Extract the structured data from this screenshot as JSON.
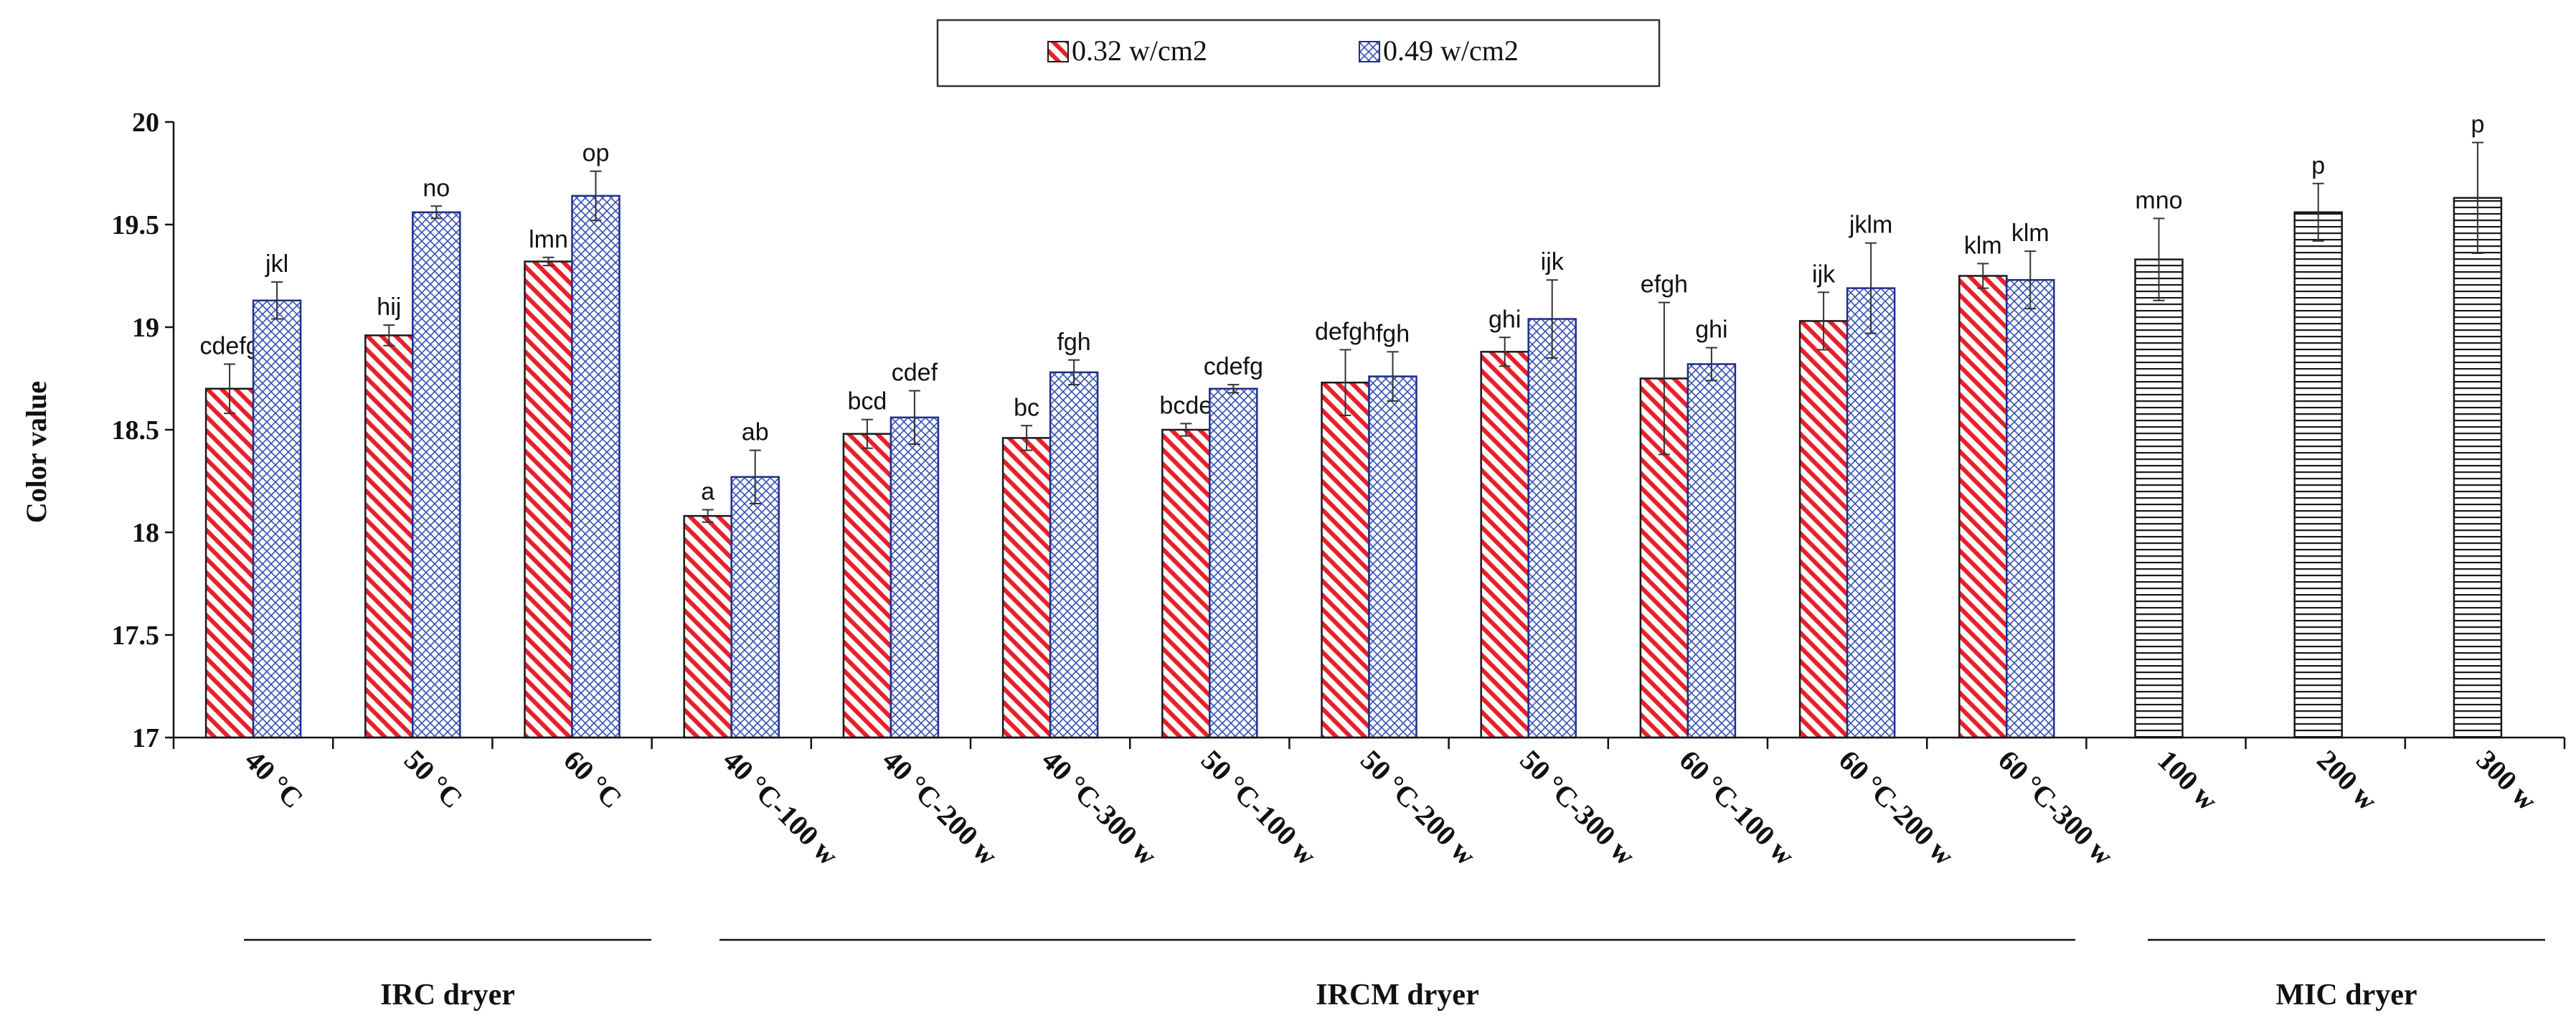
{
  "chart_data": {
    "type": "bar",
    "ylabel": "Color value",
    "ylim": [
      17,
      20
    ],
    "yticks": [
      "17",
      "17.5",
      "18",
      "18.5",
      "19",
      "19.5",
      "20"
    ],
    "categories": [
      "40 °C",
      "50 °C",
      "60 °C",
      "40 °C-100 w",
      "40 °C-200 w",
      "40 °C-300 w",
      "50 °C-100 w",
      "50 °C-200 w",
      "50 °C-300 w",
      "60 °C-100 w",
      "60 °C-200 w",
      "60 °C-300 w",
      "100 w",
      "200 w",
      "300 w"
    ],
    "series": [
      {
        "name": "0.32 w/cm2",
        "color": "#e8202a",
        "edge": "#1a1a1a",
        "pattern": "diagonal-stripes",
        "values": [
          18.7,
          18.96,
          19.32,
          18.08,
          18.48,
          18.46,
          18.5,
          18.73,
          18.88,
          18.75,
          19.03,
          19.25,
          null,
          null,
          null
        ],
        "errors": [
          0.12,
          0.05,
          0.02,
          0.03,
          0.07,
          0.06,
          0.03,
          0.16,
          0.07,
          0.37,
          0.14,
          0.06,
          null,
          null,
          null
        ],
        "letters": [
          "cdefg",
          "hij",
          "lmn",
          "a",
          "bcd",
          "bc",
          "bcde",
          "defgh",
          "ghi",
          "efgh",
          "ijk",
          "klm",
          "",
          "",
          ""
        ]
      },
      {
        "name": "0.49 w/cm2",
        "color": "#2b4aa8",
        "edge": "#1f2f8c",
        "pattern": "cross-hatch",
        "values": [
          19.13,
          19.56,
          19.64,
          18.27,
          18.56,
          18.78,
          18.7,
          18.76,
          19.04,
          18.82,
          19.19,
          19.23,
          null,
          null,
          null
        ],
        "errors": [
          0.09,
          0.03,
          0.12,
          0.13,
          0.13,
          0.06,
          0.02,
          0.12,
          0.19,
          0.08,
          0.22,
          0.14,
          null,
          null,
          null
        ],
        "letters": [
          "jkl",
          "no",
          "op",
          "ab",
          "cdef",
          "fgh",
          "cdefg",
          "fgh",
          "ijk",
          "ghi",
          "jklm",
          "klm",
          "",
          "",
          ""
        ]
      },
      {
        "name": "MIC",
        "color": "#1a1a1a",
        "edge": "#1a1a1a",
        "pattern": "horizontal-lines",
        "values": [
          null,
          null,
          null,
          null,
          null,
          null,
          null,
          null,
          null,
          null,
          null,
          null,
          19.33,
          19.56,
          19.63
        ],
        "errors": [
          null,
          null,
          null,
          null,
          null,
          null,
          null,
          null,
          null,
          null,
          null,
          null,
          0.2,
          0.14,
          0.27
        ],
        "letters": [
          "",
          "",
          "",
          "",
          "",
          "",
          "",
          "",
          "",
          "",
          "",
          "",
          "mno",
          "p",
          "p"
        ]
      }
    ],
    "legend": {
      "position": "top-center",
      "entries": [
        "0.32 w/cm2",
        "0.49 w/cm2"
      ]
    },
    "groups": [
      {
        "label": "IRC dryer",
        "from": 0,
        "to": 2
      },
      {
        "label": "IRCM dryer",
        "from": 3,
        "to": 11
      },
      {
        "label": "MIC dryer",
        "from": 12,
        "to": 14
      }
    ]
  }
}
